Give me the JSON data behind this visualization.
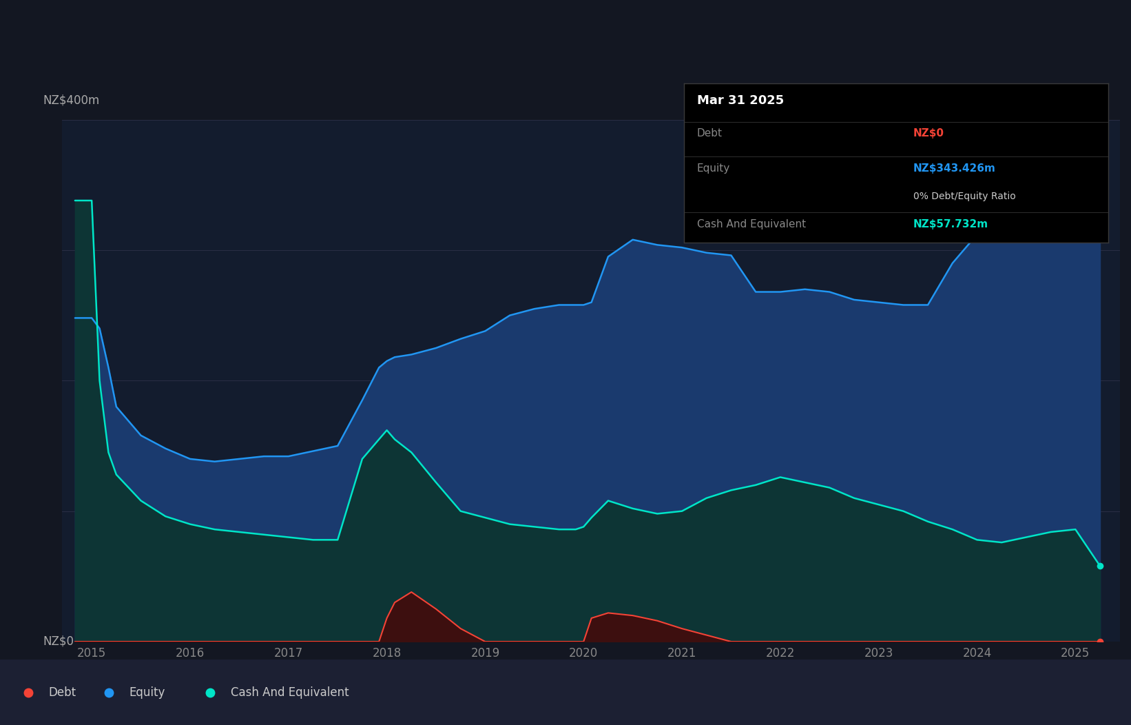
{
  "background_color": "#131722",
  "plot_bg_color": "#131c2e",
  "grid_color": "#2a2e45",
  "equity_color": "#2196f3",
  "equity_fill": "#1a3a6e",
  "cash_color": "#00e5c8",
  "cash_fill": "#0d3535",
  "debt_color": "#f44336",
  "debt_fill": "#3d0f0f",
  "tooltip_bg": "#000000",
  "tooltip_title": "Mar 31 2025",
  "tooltip_debt_label": "Debt",
  "tooltip_debt_value": "NZ$0",
  "tooltip_equity_label": "Equity",
  "tooltip_equity_value": "NZ$343.426m",
  "tooltip_ratio": "0% Debt/Equity Ratio",
  "tooltip_cash_label": "Cash And Equivalent",
  "tooltip_cash_value": "NZ$57.732m",
  "years": [
    2014.83,
    2015.0,
    2015.08,
    2015.17,
    2015.25,
    2015.5,
    2015.75,
    2016.0,
    2016.25,
    2016.5,
    2016.75,
    2017.0,
    2017.25,
    2017.5,
    2017.75,
    2017.92,
    2018.0,
    2018.08,
    2018.25,
    2018.5,
    2018.75,
    2019.0,
    2019.25,
    2019.5,
    2019.75,
    2019.92,
    2020.0,
    2020.08,
    2020.25,
    2020.5,
    2020.75,
    2021.0,
    2021.25,
    2021.5,
    2021.75,
    2022.0,
    2022.25,
    2022.5,
    2022.75,
    2023.0,
    2023.25,
    2023.5,
    2023.75,
    2024.0,
    2024.25,
    2024.5,
    2024.75,
    2025.0,
    2025.25
  ],
  "equity_values": [
    248,
    248,
    240,
    210,
    180,
    158,
    148,
    140,
    138,
    140,
    142,
    142,
    146,
    150,
    185,
    210,
    215,
    218,
    220,
    225,
    232,
    238,
    250,
    255,
    258,
    258,
    258,
    260,
    295,
    308,
    304,
    302,
    298,
    296,
    268,
    268,
    270,
    268,
    262,
    260,
    258,
    258,
    290,
    312,
    322,
    330,
    338,
    343,
    343
  ],
  "cash_values": [
    338,
    338,
    200,
    145,
    128,
    108,
    96,
    90,
    86,
    84,
    82,
    80,
    78,
    78,
    140,
    155,
    162,
    155,
    145,
    122,
    100,
    95,
    90,
    88,
    86,
    86,
    88,
    95,
    108,
    102,
    98,
    100,
    110,
    116,
    120,
    126,
    122,
    118,
    110,
    105,
    100,
    92,
    86,
    78,
    76,
    80,
    84,
    86,
    58
  ],
  "debt_values": [
    0,
    0,
    0,
    0,
    0,
    0,
    0,
    0,
    0,
    0,
    0,
    0,
    0,
    0,
    0,
    0,
    18,
    30,
    38,
    25,
    10,
    0,
    0,
    0,
    0,
    0,
    0,
    18,
    22,
    20,
    16,
    10,
    5,
    0,
    0,
    0,
    0,
    0,
    0,
    0,
    0,
    0,
    0,
    0,
    0,
    0,
    0,
    0,
    0
  ],
  "ylim": [
    0,
    400
  ],
  "xlim": [
    2014.7,
    2025.45
  ],
  "xtick_positions": [
    2015,
    2016,
    2017,
    2018,
    2019,
    2020,
    2021,
    2022,
    2023,
    2024,
    2025
  ],
  "xtick_labels": [
    "2015",
    "2016",
    "2017",
    "2018",
    "2019",
    "2020",
    "2021",
    "2022",
    "2023",
    "2024",
    "2025"
  ],
  "ytop_label": "NZ$400m",
  "ybottom_label": "NZ$0",
  "legend_items": [
    {
      "label": "Debt",
      "color": "#f44336"
    },
    {
      "label": "Equity",
      "color": "#2196f3"
    },
    {
      "label": "Cash And Equivalent",
      "color": "#00e5c8"
    }
  ]
}
